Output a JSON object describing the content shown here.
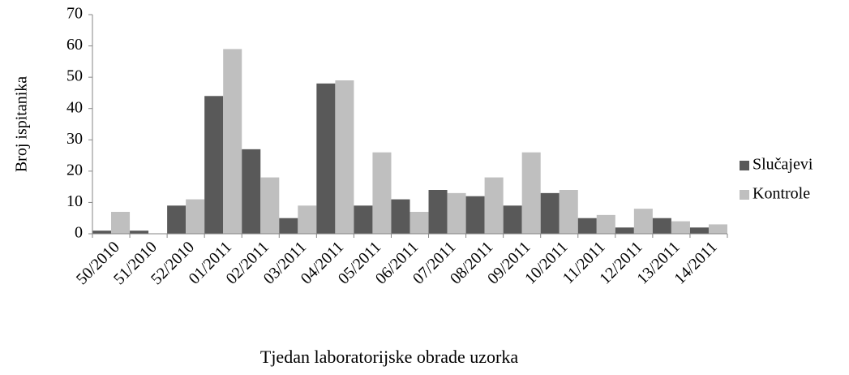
{
  "chart_data": {
    "type": "bar",
    "y_label": "Broj ispitanika",
    "x_label": "Tjedan laboratorijske obrade uzorka",
    "categories": [
      "50/2010",
      "51/2010",
      "52/2010",
      "01/2011",
      "02/2011",
      "03/2011",
      "04/2011",
      "05/2011",
      "06/2011",
      "07/2011",
      "08/2011",
      "09/2011",
      "10/2011",
      "11/2011",
      "12/2011",
      "13/2011",
      "14/2011"
    ],
    "series": [
      {
        "name": "Slučajevi",
        "color": "#595959",
        "values": [
          1,
          1,
          9,
          44,
          27,
          5,
          48,
          9,
          11,
          14,
          12,
          9,
          13,
          5,
          2,
          5,
          2
        ]
      },
      {
        "name": "Kontrole",
        "color": "#bfbfbf",
        "values": [
          7,
          0,
          11,
          59,
          18,
          9,
          49,
          26,
          7,
          13,
          18,
          26,
          14,
          6,
          8,
          4,
          3
        ]
      }
    ],
    "ylim": [
      0,
      70
    ],
    "yticks": [
      0,
      10,
      20,
      30,
      40,
      50,
      60,
      70
    ],
    "legend": "right"
  }
}
